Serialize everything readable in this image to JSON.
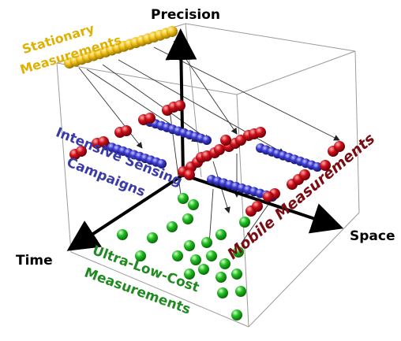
{
  "axes": {
    "precision": "Precision",
    "time": "Time",
    "space": "Space"
  },
  "labels": {
    "stationary": [
      "Stationary",
      "Measurements"
    ],
    "intensive": [
      "Intensive Sensing",
      "Campaigns"
    ],
    "ultralow": [
      "Ultra-Low-Cost",
      "Measurements"
    ],
    "mobile": "Mobile Measurements"
  },
  "colors": {
    "stationary": "#e0b000",
    "intensive": "#3a3aa8",
    "ultralow": "#1f8a1f",
    "mobile": "#7a0d12",
    "sphere_gold": "#f2c21a",
    "sphere_red": "#d0101a",
    "sphere_blue": "#3b3bd0",
    "sphere_green": "#22c022",
    "axis": "#000000",
    "cube": "#9a9a9a"
  }
}
